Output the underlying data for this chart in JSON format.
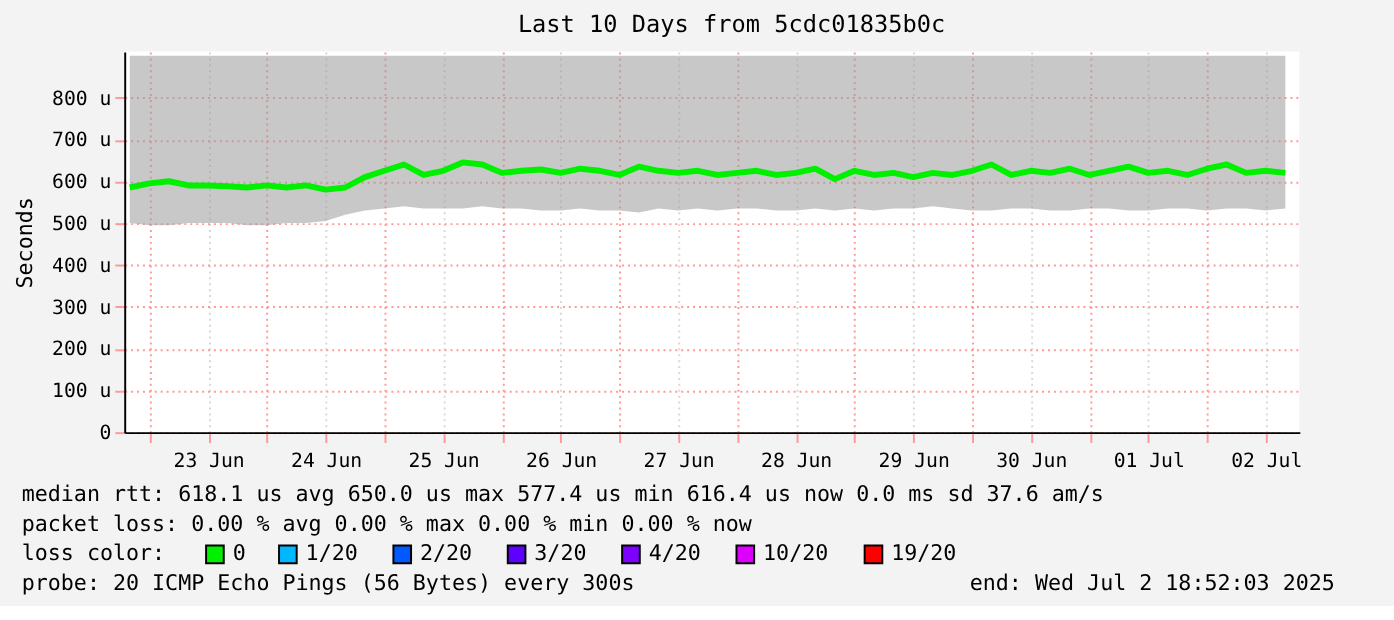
{
  "chart_data": {
    "type": "line",
    "title": "Last 10 Days from 5cdc01835b0c",
    "ylabel": "Seconds",
    "legend_title": "loss color:",
    "legend": "bottom",
    "grid": true,
    "marker": "none",
    "line_style": "solid",
    "xlim": [
      "2025-06-22T18:52",
      "2025-07-02T18:52"
    ],
    "xticks": [
      {
        "value": "2025-06-23T00:00",
        "label": null
      },
      {
        "value": "2025-06-23T12:00",
        "label": "23 Jun"
      },
      {
        "value": "2025-06-24T00:00",
        "label": null
      },
      {
        "value": "2025-06-24T12:00",
        "label": "24 Jun"
      },
      {
        "value": "2025-06-25T00:00",
        "label": null
      },
      {
        "value": "2025-06-25T12:00",
        "label": "25 Jun"
      },
      {
        "value": "2025-06-26T00:00",
        "label": null
      },
      {
        "value": "2025-06-26T12:00",
        "label": "26 Jun"
      },
      {
        "value": "2025-06-27T00:00",
        "label": null
      },
      {
        "value": "2025-06-27T12:00",
        "label": "27 Jun"
      },
      {
        "value": "2025-06-28T00:00",
        "label": null
      },
      {
        "value": "2025-06-28T12:00",
        "label": "28 Jun"
      },
      {
        "value": "2025-06-29T00:00",
        "label": null
      },
      {
        "value": "2025-06-29T12:00",
        "label": "29 Jun"
      },
      {
        "value": "2025-06-30T00:00",
        "label": null
      },
      {
        "value": "2025-06-30T12:00",
        "label": "30 Jun"
      },
      {
        "value": "2025-07-01T00:00",
        "label": null
      },
      {
        "value": "2025-07-01T12:00",
        "label": "01 Jul"
      },
      {
        "value": "2025-07-02T00:00",
        "label": null
      },
      {
        "value": "2025-07-02T12:00",
        "label": "02 Jul"
      }
    ],
    "ylim": [
      0,
      910
    ],
    "yticks": [
      0,
      {
        "value": 100,
        "label": "100 u"
      },
      {
        "value": 200,
        "label": "200 u"
      },
      {
        "value": 300,
        "label": "300 u"
      },
      {
        "value": 400,
        "label": "400 u"
      },
      {
        "value": 500,
        "label": "500 u"
      },
      {
        "value": 600,
        "label": "600 u"
      },
      {
        "value": 700,
        "label": "700 u"
      },
      {
        "value": 800,
        "label": "800 u"
      }
    ],
    "x": [
      "2025-06-22T20:00",
      "2025-06-23T00:00",
      "2025-06-23T04:00",
      "2025-06-23T08:00",
      "2025-06-23T12:00",
      "2025-06-23T16:00",
      "2025-06-23T20:00",
      "2025-06-24T00:00",
      "2025-06-24T04:00",
      "2025-06-24T08:00",
      "2025-06-24T12:00",
      "2025-06-24T16:00",
      "2025-06-24T20:00",
      "2025-06-25T00:00",
      "2025-06-25T04:00",
      "2025-06-25T08:00",
      "2025-06-25T12:00",
      "2025-06-25T16:00",
      "2025-06-25T20:00",
      "2025-06-26T00:00",
      "2025-06-26T04:00",
      "2025-06-26T08:00",
      "2025-06-26T12:00",
      "2025-06-26T16:00",
      "2025-06-26T20:00",
      "2025-06-27T00:00",
      "2025-06-27T04:00",
      "2025-06-27T08:00",
      "2025-06-27T12:00",
      "2025-06-27T16:00",
      "2025-06-27T20:00",
      "2025-06-28T00:00",
      "2025-06-28T04:00",
      "2025-06-28T08:00",
      "2025-06-28T12:00",
      "2025-06-28T16:00",
      "2025-06-28T20:00",
      "2025-06-29T00:00",
      "2025-06-29T04:00",
      "2025-06-29T08:00",
      "2025-06-29T12:00",
      "2025-06-29T16:00",
      "2025-06-29T20:00",
      "2025-06-30T00:00",
      "2025-06-30T04:00",
      "2025-06-30T08:00",
      "2025-06-30T12:00",
      "2025-06-30T16:00",
      "2025-06-30T20:00",
      "2025-07-01T00:00",
      "2025-07-01T04:00",
      "2025-07-01T08:00",
      "2025-07-01T12:00",
      "2025-07-01T16:00",
      "2025-07-01T20:00",
      "2025-07-02T00:00",
      "2025-07-02T04:00",
      "2025-07-02T08:00",
      "2025-07-02T12:00",
      "2025-07-02T16:00"
    ],
    "series": [
      {
        "name": "0",
        "color": "#00f000",
        "values": [
          585,
          595,
          600,
          590,
          590,
          588,
          585,
          590,
          585,
          590,
          580,
          585,
          610,
          625,
          640,
          615,
          625,
          645,
          640,
          620,
          625,
          628,
          620,
          630,
          625,
          615,
          635,
          625,
          620,
          625,
          615,
          620,
          625,
          615,
          620,
          630,
          605,
          625,
          615,
          620,
          610,
          620,
          615,
          625,
          640,
          615,
          625,
          620,
          630,
          615,
          625,
          635,
          620,
          625,
          615,
          630,
          640,
          620,
          625,
          620
        ],
        "lower": [
          500,
          495,
          495,
          500,
          500,
          500,
          495,
          495,
          500,
          500,
          505,
          520,
          530,
          535,
          540,
          535,
          535,
          535,
          540,
          535,
          535,
          530,
          530,
          535,
          530,
          530,
          525,
          535,
          530,
          535,
          530,
          535,
          535,
          530,
          530,
          535,
          530,
          535,
          530,
          535,
          535,
          540,
          535,
          530,
          530,
          535,
          535,
          530,
          530,
          535,
          535,
          530,
          530,
          535,
          535,
          530,
          535,
          535,
          530,
          535
        ],
        "upper": [
          900,
          900,
          900,
          900,
          900,
          900,
          900,
          900,
          900,
          900,
          900,
          900,
          900,
          900,
          900,
          900,
          900,
          900,
          900,
          900,
          900,
          900,
          900,
          900,
          900,
          900,
          900,
          900,
          900,
          900,
          900,
          900,
          900,
          900,
          900,
          900,
          900,
          900,
          900,
          900,
          900,
          900,
          900,
          900,
          900,
          900,
          900,
          900,
          900,
          900,
          900,
          900,
          900,
          900,
          900,
          900,
          900,
          900,
          900,
          900
        ]
      },
      {
        "name": "1/20",
        "color": "#00b8ff",
        "values": [
          null,
          null,
          null,
          null,
          null,
          null,
          null,
          null,
          null,
          null,
          null,
          null,
          null,
          null,
          null,
          null,
          null,
          null,
          null,
          null,
          null,
          null,
          null,
          null,
          null,
          null,
          null,
          null,
          null,
          null,
          null,
          null,
          null,
          null,
          null,
          null,
          null,
          null,
          null,
          null,
          null,
          null,
          null,
          null,
          null,
          null,
          null,
          null,
          null,
          null,
          null,
          null,
          null,
          null,
          null,
          null,
          null,
          null,
          null,
          null
        ]
      },
      {
        "name": "2/20",
        "color": "#0059ff",
        "values": [
          null,
          null,
          null,
          null,
          null,
          null,
          null,
          null,
          null,
          null,
          null,
          null,
          null,
          null,
          null,
          null,
          null,
          null,
          null,
          null,
          null,
          null,
          null,
          null,
          null,
          null,
          null,
          null,
          null,
          null,
          null,
          null,
          null,
          null,
          null,
          null,
          null,
          null,
          null,
          null,
          null,
          null,
          null,
          null,
          null,
          null,
          null,
          null,
          null,
          null,
          null,
          null,
          null,
          null,
          null,
          null,
          null,
          null,
          null,
          null
        ]
      },
      {
        "name": "3/20",
        "color": "#5e00ff",
        "values": [
          null,
          null,
          null,
          null,
          null,
          null,
          null,
          null,
          null,
          null,
          null,
          null,
          null,
          null,
          null,
          null,
          null,
          null,
          null,
          null,
          null,
          null,
          null,
          null,
          null,
          null,
          null,
          null,
          null,
          null,
          null,
          null,
          null,
          null,
          null,
          null,
          null,
          null,
          null,
          null,
          null,
          null,
          null,
          null,
          null,
          null,
          null,
          null,
          null,
          null,
          null,
          null,
          null,
          null,
          null,
          null,
          null,
          null,
          null,
          null
        ]
      },
      {
        "name": "4/20",
        "color": "#7e00ff",
        "values": [
          null,
          null,
          null,
          null,
          null,
          null,
          null,
          null,
          null,
          null,
          null,
          null,
          null,
          null,
          null,
          null,
          null,
          null,
          null,
          null,
          null,
          null,
          null,
          null,
          null,
          null,
          null,
          null,
          null,
          null,
          null,
          null,
          null,
          null,
          null,
          null,
          null,
          null,
          null,
          null,
          null,
          null,
          null,
          null,
          null,
          null,
          null,
          null,
          null,
          null,
          null,
          null,
          null,
          null,
          null,
          null,
          null,
          null,
          null,
          null
        ]
      },
      {
        "name": "10/20",
        "color": "#dd00ff",
        "values": [
          null,
          null,
          null,
          null,
          null,
          null,
          null,
          null,
          null,
          null,
          null,
          null,
          null,
          null,
          null,
          null,
          null,
          null,
          null,
          null,
          null,
          null,
          null,
          null,
          null,
          null,
          null,
          null,
          null,
          null,
          null,
          null,
          null,
          null,
          null,
          null,
          null,
          null,
          null,
          null,
          null,
          null,
          null,
          null,
          null,
          null,
          null,
          null,
          null,
          null,
          null,
          null,
          null,
          null,
          null,
          null,
          null,
          null,
          null,
          null
        ]
      },
      {
        "name": "19/20",
        "color": "#ff0000",
        "values": [
          null,
          null,
          null,
          null,
          null,
          null,
          null,
          null,
          null,
          null,
          null,
          null,
          null,
          null,
          null,
          null,
          null,
          null,
          null,
          null,
          null,
          null,
          null,
          null,
          null,
          null,
          null,
          null,
          null,
          null,
          null,
          null,
          null,
          null,
          null,
          null,
          null,
          null,
          null,
          null,
          null,
          null,
          null,
          null,
          null,
          null,
          null,
          null,
          null,
          null,
          null,
          null,
          null,
          null,
          null,
          null,
          null,
          null,
          null,
          null
        ]
      }
    ],
    "annotations": [
      "median rtt:  618.1 us avg  650.0 us max  577.4 us min  616.4 us now  0.0 ms sd  37.6   am/s",
      "packet loss: 0.00 % avg  0.00 % max  0.00 % min  0.00 % now",
      "probe:       20 ICMP Echo Pings (56 Bytes) every 300s",
      "end: Wed Jul  2 18:52:03 2025"
    ]
  }
}
